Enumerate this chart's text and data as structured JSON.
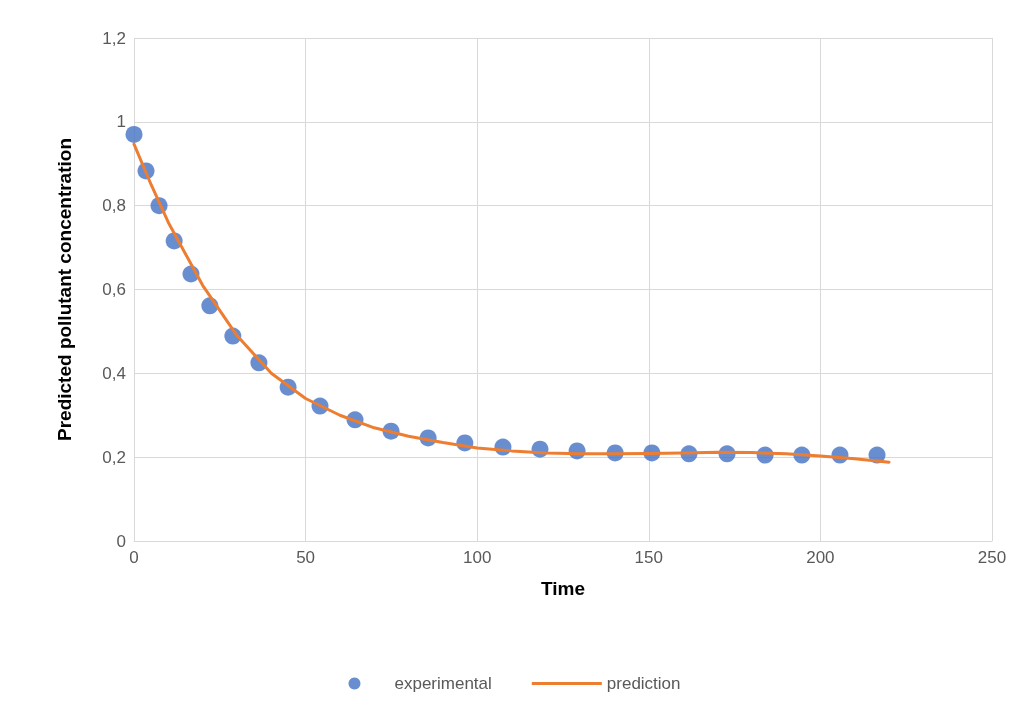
{
  "chart_data": {
    "type": "scatter",
    "xlabel": "Time",
    "ylabel": "Predicted pollutant concentration",
    "xlim": [
      0,
      250
    ],
    "xticks": [
      0,
      50,
      100,
      150,
      200,
      250
    ],
    "ylim": [
      0,
      1.2
    ],
    "yticks": [
      0,
      {
        "value": 0.2,
        "label": "0,2"
      },
      {
        "value": 0.4,
        "label": "0,4"
      },
      {
        "value": 0.6,
        "label": "0,6"
      },
      {
        "value": 0.8,
        "label": "0,8"
      },
      1,
      {
        "value": 1.2,
        "label": "1,2"
      }
    ],
    "grid": true,
    "legend": "bottom",
    "series": [
      {
        "name": "experimental",
        "marker": "circle",
        "color": "#4472c4",
        "x": [
          0,
          3.5,
          7.3,
          11.7,
          16.6,
          22.1,
          28.8,
          36.4,
          44.9,
          54.2,
          64.4,
          74.9,
          85.7,
          96.4,
          107.5,
          118.3,
          129.1,
          140.2,
          150.9,
          161.7,
          172.8,
          183.9,
          194.6,
          205.7,
          216.5
        ],
        "values": [
          0.97,
          0.883,
          0.8,
          0.716,
          0.637,
          0.561,
          0.489,
          0.425,
          0.367,
          0.322,
          0.289,
          0.262,
          0.246,
          0.234,
          0.224,
          0.219,
          0.215,
          0.21,
          0.21,
          0.208,
          0.208,
          0.205,
          0.205,
          0.205,
          0.205
        ]
      },
      {
        "name": "prediction",
        "type": "line",
        "marker": "none",
        "line_style": "solid",
        "color": "#ed7d31",
        "x": [
          0,
          5,
          10,
          20,
          30,
          40,
          50,
          60,
          70,
          80,
          90,
          100,
          110,
          120,
          130,
          140,
          150,
          160,
          170,
          180,
          190,
          200,
          210,
          220
        ],
        "values": [
          0.947,
          0.85,
          0.76,
          0.61,
          0.49,
          0.4,
          0.34,
          0.3,
          0.27,
          0.25,
          0.235,
          0.222,
          0.215,
          0.21,
          0.208,
          0.208,
          0.209,
          0.21,
          0.212,
          0.211,
          0.208,
          0.203,
          0.196,
          0.188
        ]
      }
    ]
  }
}
